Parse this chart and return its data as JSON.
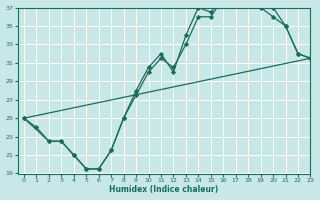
{
  "xlabel": "Humidex (Indice chaleur)",
  "background_color": "#c8e8e8",
  "grid_color": "#b8d8d8",
  "line_color": "#1a6b5a",
  "xmin": -0.5,
  "xmax": 23,
  "ymin": 19,
  "ymax": 37,
  "yticks": [
    19,
    21,
    23,
    25,
    27,
    29,
    31,
    33,
    35,
    37
  ],
  "curve1_x": [
    0,
    1,
    2,
    3,
    4,
    5,
    6,
    7,
    8,
    9,
    10,
    11,
    12,
    13,
    14,
    15,
    16,
    17,
    18,
    19,
    20,
    21,
    22,
    23
  ],
  "curve1_y": [
    25,
    24,
    22.5,
    22.5,
    21,
    19.5,
    19.5,
    21.5,
    25,
    28,
    30.5,
    32,
    30,
    34,
    37,
    36.5,
    38,
    38,
    37.5,
    37.5,
    37,
    35,
    32,
    31.5
  ],
  "curve2_x": [
    0,
    2,
    3,
    4,
    5,
    6,
    7,
    8,
    9,
    10,
    11,
    12,
    13,
    14,
    15,
    16,
    17,
    18,
    19,
    20,
    21,
    22,
    23
  ],
  "curve2_y": [
    25,
    22.5,
    22.5,
    21,
    19.5,
    19.5,
    21.5,
    25,
    27.5,
    30,
    31.5,
    30.5,
    33,
    36,
    36,
    38,
    37.5,
    37.5,
    37,
    36,
    35,
    32,
    31.5
  ],
  "line3_x": [
    0,
    23
  ],
  "line3_y": [
    25,
    31.5
  ]
}
